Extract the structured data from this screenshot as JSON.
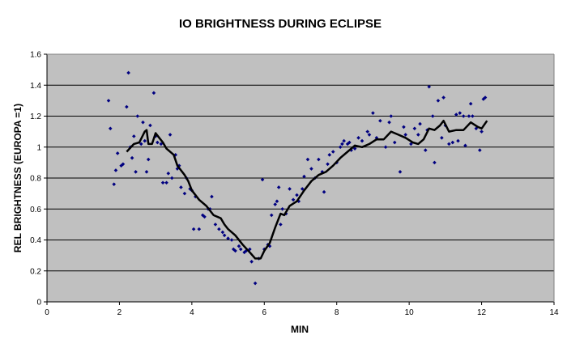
{
  "chart_data": {
    "type": "scatter",
    "title": "IO BRIGHTNESS DURING ECLIPSE",
    "xlabel": "MIN",
    "ylabel": "REL BRIGHTNESS (EUROPA =1)",
    "xlim": [
      0,
      14
    ],
    "ylim": [
      0,
      1.6
    ],
    "x_ticks": [
      "0",
      "2",
      "4",
      "6",
      "8",
      "10",
      "12",
      "14"
    ],
    "y_ticks": [
      "0",
      "0.2",
      "0.4",
      "0.6",
      "0.8",
      "1",
      "1.2",
      "1.4",
      "1.6"
    ],
    "grid": "horizontal",
    "legend": "none",
    "colors": {
      "plot_bg": "#c0c0c0",
      "points": "#000080",
      "line": "#000000",
      "grid": "#000000"
    },
    "series": [
      {
        "kind": "scatter",
        "points": [
          [
            1.7,
            1.3
          ],
          [
            1.75,
            1.12
          ],
          [
            1.85,
            0.76
          ],
          [
            1.9,
            0.85
          ],
          [
            1.95,
            0.96
          ],
          [
            2.05,
            0.88
          ],
          [
            2.1,
            0.89
          ],
          [
            2.2,
            1.26
          ],
          [
            2.25,
            1.48
          ],
          [
            2.3,
            1.0
          ],
          [
            2.35,
            0.93
          ],
          [
            2.4,
            1.07
          ],
          [
            2.45,
            0.84
          ],
          [
            2.5,
            1.2
          ],
          [
            2.6,
            1.02
          ],
          [
            2.65,
            1.16
          ],
          [
            2.7,
            1.04
          ],
          [
            2.75,
            0.84
          ],
          [
            2.8,
            0.92
          ],
          [
            2.85,
            1.14
          ],
          [
            2.95,
            1.35
          ],
          [
            3.0,
            1.07
          ],
          [
            3.05,
            1.03
          ],
          [
            3.15,
            1.02
          ],
          [
            3.2,
            0.77
          ],
          [
            3.3,
            0.77
          ],
          [
            3.35,
            0.83
          ],
          [
            3.4,
            1.08
          ],
          [
            3.45,
            0.8
          ],
          [
            3.55,
            0.95
          ],
          [
            3.6,
            0.86
          ],
          [
            3.65,
            0.88
          ],
          [
            3.7,
            0.74
          ],
          [
            3.8,
            0.7
          ],
          [
            3.85,
            0.8
          ],
          [
            3.95,
            0.73
          ],
          [
            4.0,
            0.72
          ],
          [
            4.05,
            0.47
          ],
          [
            4.1,
            0.68
          ],
          [
            4.2,
            0.47
          ],
          [
            4.3,
            0.56
          ],
          [
            4.35,
            0.55
          ],
          [
            4.45,
            0.6
          ],
          [
            4.5,
            0.6
          ],
          [
            4.55,
            0.68
          ],
          [
            4.65,
            0.5
          ],
          [
            4.75,
            0.47
          ],
          [
            4.85,
            0.45
          ],
          [
            4.9,
            0.43
          ],
          [
            5.0,
            0.41
          ],
          [
            5.1,
            0.4
          ],
          [
            5.15,
            0.34
          ],
          [
            5.2,
            0.33
          ],
          [
            5.3,
            0.36
          ],
          [
            5.35,
            0.34
          ],
          [
            5.45,
            0.32
          ],
          [
            5.5,
            0.33
          ],
          [
            5.6,
            0.34
          ],
          [
            5.65,
            0.26
          ],
          [
            5.75,
            0.12
          ],
          [
            5.85,
            0.28
          ],
          [
            5.95,
            0.79
          ],
          [
            6.0,
            0.34
          ],
          [
            6.1,
            0.37
          ],
          [
            6.15,
            0.36
          ],
          [
            6.2,
            0.56
          ],
          [
            6.3,
            0.63
          ],
          [
            6.35,
            0.65
          ],
          [
            6.4,
            0.74
          ],
          [
            6.45,
            0.5
          ],
          [
            6.5,
            0.6
          ],
          [
            6.6,
            0.57
          ],
          [
            6.7,
            0.73
          ],
          [
            6.8,
            0.66
          ],
          [
            6.9,
            0.69
          ],
          [
            6.95,
            0.65
          ],
          [
            7.05,
            0.73
          ],
          [
            7.1,
            0.81
          ],
          [
            7.2,
            0.92
          ],
          [
            7.3,
            0.86
          ],
          [
            7.4,
            0.8
          ],
          [
            7.5,
            0.92
          ],
          [
            7.6,
            0.84
          ],
          [
            7.65,
            0.71
          ],
          [
            7.75,
            0.89
          ],
          [
            7.8,
            0.95
          ],
          [
            7.9,
            0.97
          ],
          [
            8.0,
            0.9
          ],
          [
            8.1,
            1.0
          ],
          [
            8.15,
            1.02
          ],
          [
            8.2,
            1.04
          ],
          [
            8.3,
            1.02
          ],
          [
            8.35,
            1.03
          ],
          [
            8.4,
            0.98
          ],
          [
            8.5,
            0.99
          ],
          [
            8.6,
            1.06
          ],
          [
            8.7,
            1.04
          ],
          [
            8.85,
            1.1
          ],
          [
            8.9,
            1.08
          ],
          [
            9.0,
            1.22
          ],
          [
            9.1,
            1.06
          ],
          [
            9.2,
            1.17
          ],
          [
            9.35,
            1.0
          ],
          [
            9.45,
            1.16
          ],
          [
            9.5,
            1.2
          ],
          [
            9.6,
            1.03
          ],
          [
            9.75,
            0.84
          ],
          [
            9.85,
            1.13
          ],
          [
            9.9,
            1.08
          ],
          [
            10.05,
            1.02
          ],
          [
            10.15,
            1.12
          ],
          [
            10.25,
            1.08
          ],
          [
            10.3,
            1.15
          ],
          [
            10.45,
            0.98
          ],
          [
            10.5,
            1.11
          ],
          [
            10.55,
            1.39
          ],
          [
            10.65,
            1.2
          ],
          [
            10.7,
            0.9
          ],
          [
            10.8,
            1.3
          ],
          [
            10.9,
            1.06
          ],
          [
            10.95,
            1.32
          ],
          [
            11.0,
            1.14
          ],
          [
            11.1,
            1.02
          ],
          [
            11.2,
            1.03
          ],
          [
            11.3,
            1.21
          ],
          [
            11.35,
            1.04
          ],
          [
            11.4,
            1.22
          ],
          [
            11.5,
            1.2
          ],
          [
            11.55,
            1.01
          ],
          [
            11.65,
            1.2
          ],
          [
            11.7,
            1.28
          ],
          [
            11.75,
            1.2
          ],
          [
            11.85,
            1.12
          ],
          [
            11.95,
            0.98
          ],
          [
            12.0,
            1.1
          ],
          [
            12.05,
            1.31
          ],
          [
            12.1,
            1.32
          ]
        ]
      },
      {
        "kind": "line",
        "points": [
          [
            2.2,
            0.97
          ],
          [
            2.4,
            1.02
          ],
          [
            2.55,
            1.03
          ],
          [
            2.7,
            1.1
          ],
          [
            2.75,
            1.11
          ],
          [
            2.8,
            1.02
          ],
          [
            2.9,
            1.02
          ],
          [
            3.0,
            1.09
          ],
          [
            3.1,
            1.06
          ],
          [
            3.2,
            1.03
          ],
          [
            3.3,
            0.99
          ],
          [
            3.5,
            0.95
          ],
          [
            3.6,
            0.88
          ],
          [
            3.7,
            0.85
          ],
          [
            3.8,
            0.82
          ],
          [
            3.9,
            0.78
          ],
          [
            4.0,
            0.72
          ],
          [
            4.2,
            0.66
          ],
          [
            4.4,
            0.62
          ],
          [
            4.6,
            0.56
          ],
          [
            4.8,
            0.54
          ],
          [
            4.9,
            0.5
          ],
          [
            5.0,
            0.47
          ],
          [
            5.2,
            0.43
          ],
          [
            5.4,
            0.37
          ],
          [
            5.6,
            0.32
          ],
          [
            5.75,
            0.28
          ],
          [
            5.9,
            0.28
          ],
          [
            6.0,
            0.33
          ],
          [
            6.15,
            0.38
          ],
          [
            6.3,
            0.48
          ],
          [
            6.45,
            0.57
          ],
          [
            6.55,
            0.56
          ],
          [
            6.7,
            0.62
          ],
          [
            6.9,
            0.65
          ],
          [
            7.1,
            0.72
          ],
          [
            7.3,
            0.78
          ],
          [
            7.5,
            0.82
          ],
          [
            7.7,
            0.84
          ],
          [
            7.9,
            0.88
          ],
          [
            8.1,
            0.93
          ],
          [
            8.3,
            0.97
          ],
          [
            8.5,
            1.01
          ],
          [
            8.7,
            1.0
          ],
          [
            8.9,
            1.02
          ],
          [
            9.1,
            1.05
          ],
          [
            9.3,
            1.05
          ],
          [
            9.5,
            1.1
          ],
          [
            9.7,
            1.08
          ],
          [
            9.9,
            1.06
          ],
          [
            10.1,
            1.03
          ],
          [
            10.25,
            1.02
          ],
          [
            10.4,
            1.05
          ],
          [
            10.55,
            1.12
          ],
          [
            10.7,
            1.11
          ],
          [
            10.85,
            1.14
          ],
          [
            10.95,
            1.17
          ],
          [
            11.1,
            1.1
          ],
          [
            11.3,
            1.11
          ],
          [
            11.5,
            1.11
          ],
          [
            11.7,
            1.16
          ],
          [
            11.9,
            1.13
          ],
          [
            12.0,
            1.12
          ],
          [
            12.15,
            1.17
          ]
        ]
      }
    ]
  }
}
